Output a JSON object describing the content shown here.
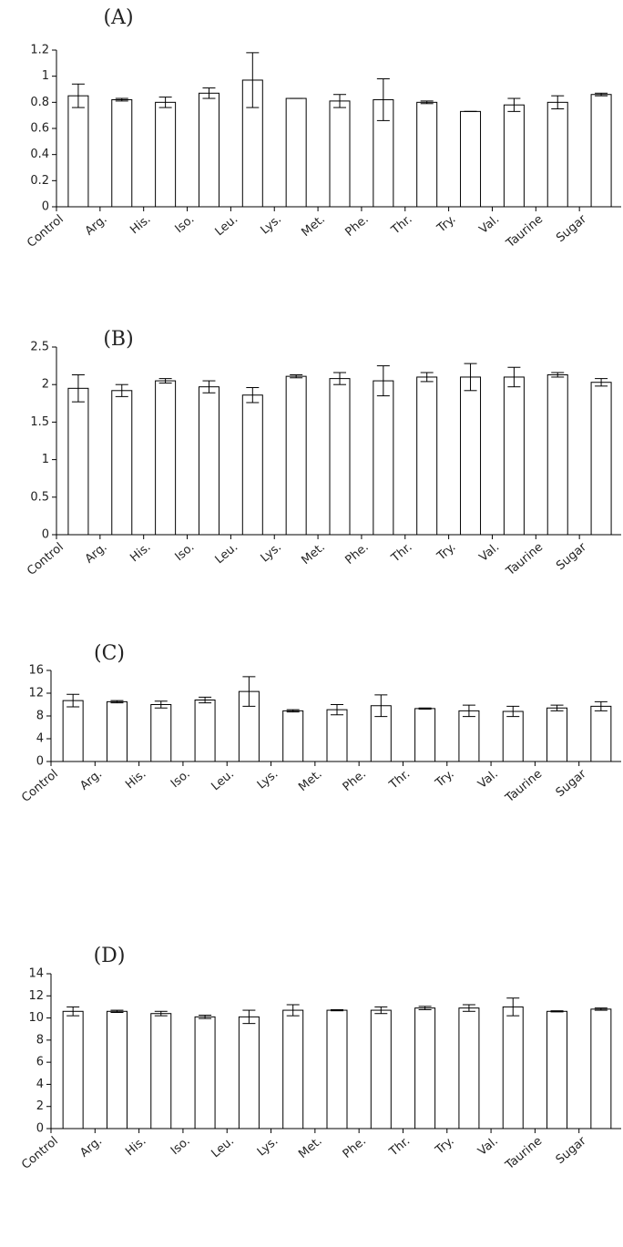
{
  "chart_data": [
    {
      "type": "bar",
      "title": "(A)",
      "categories": [
        "Control",
        "Arg.",
        "His.",
        "Iso.",
        "Leu.",
        "Lys.",
        "Met.",
        "Phe.",
        "Thr.",
        "Try.",
        "Val.",
        "Taurine",
        "Sugar"
      ],
      "values": [
        0.85,
        0.82,
        0.8,
        0.87,
        0.97,
        0.83,
        0.81,
        0.82,
        0.8,
        0.73,
        0.78,
        0.8,
        0.86
      ],
      "errors": [
        0.09,
        0.01,
        0.04,
        0.04,
        0.21,
        0.0,
        0.05,
        0.16,
        0.01,
        0.0,
        0.05,
        0.05,
        0.01
      ],
      "color": "#ffffff",
      "ylim": [
        0,
        1.2
      ],
      "yticks": [
        0,
        0.2,
        0.4,
        0.6,
        0.8,
        1,
        1.2
      ]
    },
    {
      "type": "bar",
      "title": "(B)",
      "categories": [
        "Control",
        "Arg.",
        "His.",
        "Iso.",
        "Leu.",
        "Lys.",
        "Met.",
        "Phe.",
        "Thr.",
        "Try.",
        "Val.",
        "Taurine",
        "Sugar"
      ],
      "values": [
        1.95,
        1.92,
        2.05,
        1.97,
        1.86,
        2.11,
        2.08,
        2.05,
        2.1,
        2.1,
        2.1,
        2.13,
        2.03
      ],
      "errors": [
        0.18,
        0.08,
        0.03,
        0.08,
        0.1,
        0.02,
        0.08,
        0.2,
        0.06,
        0.18,
        0.13,
        0.03,
        0.05
      ],
      "color": "#ffffff",
      "ylim": [
        0,
        2.5
      ],
      "yticks": [
        0,
        0.5,
        1,
        1.5,
        2,
        2.5
      ]
    },
    {
      "type": "bar",
      "title": "(C)",
      "categories": [
        "Control",
        "Arg.",
        "His.",
        "Iso.",
        "Leu.",
        "Lys.",
        "Met.",
        "Phe.",
        "Thr.",
        "Try.",
        "Val.",
        "Taurine",
        "Sugar"
      ],
      "values": [
        10.7,
        10.5,
        10,
        10.8,
        12.3,
        8.9,
        9.1,
        9.8,
        9.3,
        8.9,
        8.8,
        9.4,
        9.7
      ],
      "errors": [
        1.1,
        0.2,
        0.6,
        0.5,
        2.6,
        0.2,
        0.9,
        1.9,
        0.1,
        1.0,
        0.9,
        0.5,
        0.8
      ],
      "color": "#ffffff",
      "ylim": [
        0,
        16
      ],
      "yticks": [
        0,
        4,
        8,
        12,
        16
      ]
    },
    {
      "type": "bar",
      "title": "(D)",
      "categories": [
        "Control",
        "Arg.",
        "His.",
        "Iso.",
        "Leu.",
        "Lys.",
        "Met.",
        "Phe.",
        "Thr.",
        "Try.",
        "Val.",
        "Taurine",
        "Sugar"
      ],
      "values": [
        10.6,
        10.6,
        10.4,
        10.1,
        10.1,
        10.7,
        10.7,
        10.7,
        10.9,
        10.9,
        11,
        10.6,
        10.8
      ],
      "errors": [
        0.4,
        0.1,
        0.2,
        0.15,
        0.6,
        0.5,
        0.05,
        0.3,
        0.15,
        0.3,
        0.8,
        0.05,
        0.1
      ],
      "color": "#ffffff",
      "ylim": [
        0,
        14
      ],
      "yticks": [
        0,
        2,
        4,
        6,
        8,
        10,
        12,
        14
      ]
    }
  ]
}
